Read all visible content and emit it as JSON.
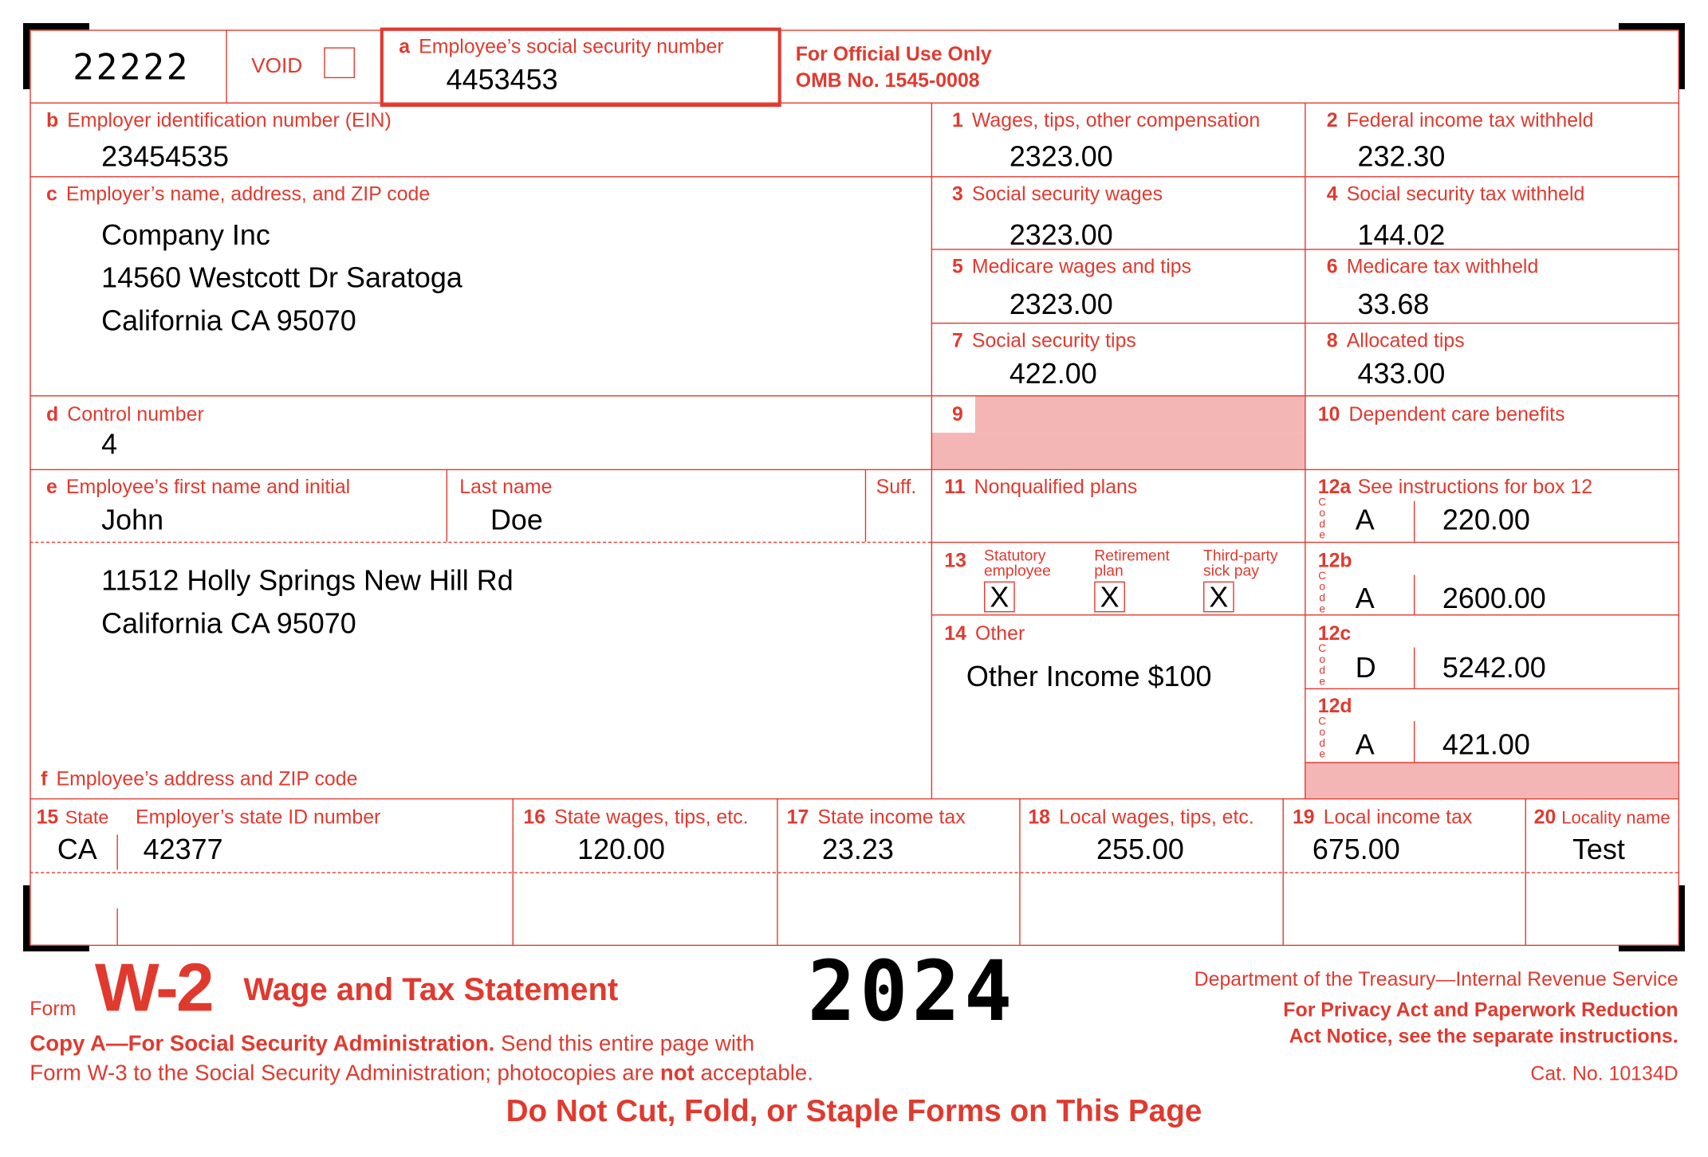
{
  "form": {
    "control_code": "22222",
    "void_label": "VOID",
    "void_checked": false,
    "official_use": "For Official Use Only",
    "omb": "OMB No. 1545-0008",
    "accent_color": "#e03a2f",
    "shade_color": "#f4b6b4"
  },
  "a": {
    "letter": "a",
    "label": "Employee’s social security number",
    "value": "4453453"
  },
  "b": {
    "letter": "b",
    "label": "Employer identification number (EIN)",
    "value": "23454535"
  },
  "c": {
    "letter": "c",
    "label": "Employer’s name, address, and ZIP code",
    "lines": [
      "Company Inc",
      "14560 Westcott Dr Saratoga",
      "California CA 95070"
    ]
  },
  "d": {
    "letter": "d",
    "label": "Control number",
    "value": "4"
  },
  "e": {
    "letter": "e",
    "label": "Employee’s first name and initial",
    "first": "John",
    "last_label": "Last name",
    "last": "Doe",
    "suff_label": "Suff.",
    "address": [
      "11512 Holly Springs New Hill Rd",
      "California CA 95070"
    ]
  },
  "f": {
    "letter": "f",
    "label": "Employee’s address and ZIP code"
  },
  "boxes": {
    "b1": {
      "num": "1",
      "label": "Wages, tips, other compensation",
      "value": "2323.00"
    },
    "b2": {
      "num": "2",
      "label": "Federal income tax withheld",
      "value": "232.30"
    },
    "b3": {
      "num": "3",
      "label": "Social security wages",
      "value": "2323.00"
    },
    "b4": {
      "num": "4",
      "label": "Social security tax withheld",
      "value": "144.02"
    },
    "b5": {
      "num": "5",
      "label": "Medicare wages and tips",
      "value": "2323.00"
    },
    "b6": {
      "num": "6",
      "label": "Medicare tax withheld",
      "value": "33.68"
    },
    "b7": {
      "num": "7",
      "label": "Social security tips",
      "value": "422.00"
    },
    "b8": {
      "num": "8",
      "label": "Allocated tips",
      "value": "433.00"
    },
    "b9": {
      "num": "9"
    },
    "b10": {
      "num": "10",
      "label": "Dependent care benefits"
    },
    "b11": {
      "num": "11",
      "label": "Nonqualified plans"
    },
    "b12": {
      "instructions": "See instructions for box 12",
      "code_label": "Code",
      "items": [
        {
          "num": "12a",
          "code": "A",
          "amount": "220.00"
        },
        {
          "num": "12b",
          "code": "A",
          "amount": "2600.00"
        },
        {
          "num": "12c",
          "code": "D",
          "amount": "5242.00"
        },
        {
          "num": "12d",
          "code": "A",
          "amount": "421.00"
        }
      ]
    },
    "b13": {
      "num": "13",
      "checks": [
        {
          "l1": "Statutory",
          "l2": "employee",
          "mark": "X"
        },
        {
          "l1": "Retirement",
          "l2": "plan",
          "mark": "X"
        },
        {
          "l1": "Third-party",
          "l2": "sick pay",
          "mark": "X"
        }
      ]
    },
    "b14": {
      "num": "14",
      "label": "Other",
      "value": "Other Income $100"
    },
    "b15": {
      "num": "15",
      "label": "State",
      "id_label": "Employer’s state ID number",
      "state": "CA",
      "state_id": "42377"
    },
    "b16": {
      "num": "16",
      "label": "State wages, tips, etc.",
      "value": "120.00"
    },
    "b17": {
      "num": "17",
      "label": "State income tax",
      "value": "23.23"
    },
    "b18": {
      "num": "18",
      "label": "Local wages, tips, etc.",
      "value": "255.00"
    },
    "b19": {
      "num": "19",
      "label": "Local income tax",
      "value": "675.00"
    },
    "b20": {
      "num": "20",
      "label": "Locality name",
      "value": "Test"
    }
  },
  "footer": {
    "form_word": "Form",
    "form_name": "W-2",
    "title": "Wage and Tax Statement",
    "year": "2024",
    "dept": "Department of the Treasury—Internal Revenue Service",
    "privacy1": "For Privacy Act and Paperwork Reduction",
    "privacy2": "Act Notice, see the separate instructions.",
    "cat": "Cat. No. 10134D",
    "copy_bold": "Copy A—For Social Security Administration.",
    "copy_rest": " Send this entire page with",
    "line2a": "Form W-3 to the Social Security Administration; photocopies are ",
    "line2b": "not",
    "line2c": " acceptable.",
    "warning": "Do Not Cut, Fold, or Staple Forms on This Page"
  }
}
